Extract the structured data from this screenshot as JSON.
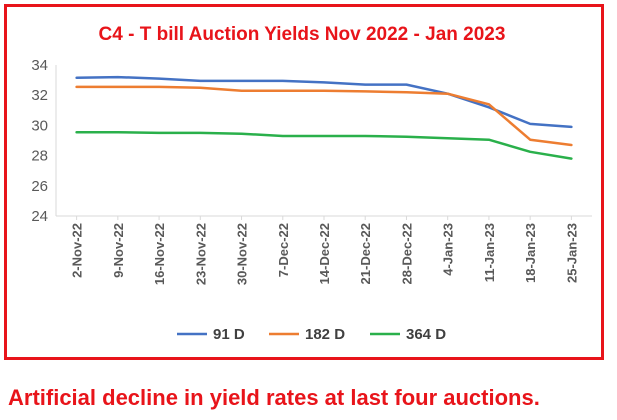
{
  "chart_data": {
    "type": "line",
    "title": "C4 - T bill Auction Yields Nov 2022 - Jan 2023",
    "categories": [
      "2-Nov-22",
      "9-Nov-22",
      "16-Nov-22",
      "23-Nov-22",
      "30-Nov-22",
      "7-Dec-22",
      "14-Dec-22",
      "21-Dec-22",
      "28-Dec-22",
      "4-Jan-23",
      "11-Jan-23",
      "18-Jan-23",
      "25-Jan-23"
    ],
    "series": [
      {
        "name": "91 D",
        "color": "#4472c4",
        "values": [
          33.15,
          33.2,
          33.1,
          32.95,
          32.95,
          32.95,
          32.85,
          32.7,
          32.7,
          32.1,
          31.2,
          30.1,
          29.9
        ]
      },
      {
        "name": "182 D",
        "color": "#ed7d31",
        "values": [
          32.55,
          32.55,
          32.55,
          32.5,
          32.3,
          32.3,
          32.3,
          32.25,
          32.2,
          32.1,
          31.4,
          29.05,
          28.7
        ]
      },
      {
        "name": "364 D",
        "color": "#2ab04b",
        "values": [
          29.55,
          29.55,
          29.5,
          29.5,
          29.45,
          29.3,
          29.3,
          29.3,
          29.25,
          29.15,
          29.05,
          28.25,
          27.8
        ]
      }
    ],
    "ylim": [
      24,
      34
    ],
    "yticks": [
      24,
      26,
      28,
      30,
      32,
      34
    ],
    "xlabel": "",
    "ylabel": "",
    "legend": "bottom",
    "grid": false
  },
  "caption": "Artificial decline in yield rates at last four auctions."
}
